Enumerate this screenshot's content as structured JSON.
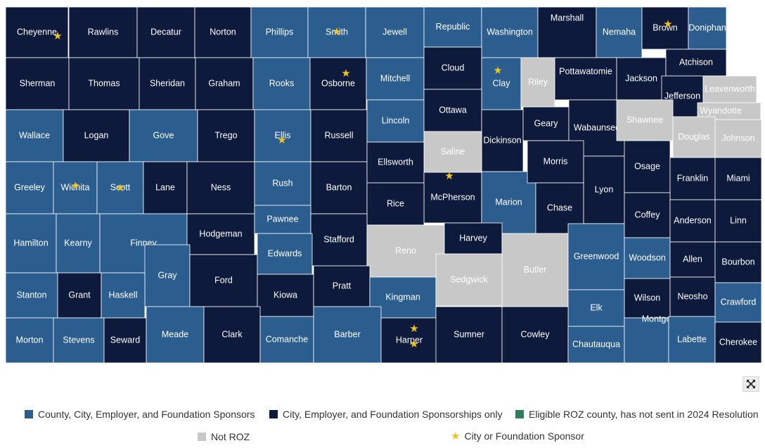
{
  "colors": {
    "full_sponsor": "#2b5d8f",
    "partial_sponsor": "#0e1a3c",
    "eligible": "#2e7d5b",
    "not_roz": "#c8c8c8",
    "star": "#f2c31b",
    "border": "#ffffff"
  },
  "legend": [
    {
      "key": "full_sponsor",
      "label": "County, City, Employer, and Foundation Sponsors"
    },
    {
      "key": "partial_sponsor",
      "label": "City, Employer, and Foundation Sponsorships only"
    },
    {
      "key": "eligible",
      "label": "Eligible ROZ county, has not sent in 2024 Resolution"
    },
    {
      "key": "not_roz",
      "label": "Not ROZ"
    },
    {
      "key": "star",
      "label": "City or Foundation Sponsor",
      "icon": "star-icon"
    }
  ],
  "expand_icon": "expand-icon",
  "counties": [
    {
      "name": "Cheyenne",
      "status": "partial_sponsor",
      "star": true
    },
    {
      "name": "Rawlins",
      "status": "partial_sponsor",
      "star": false
    },
    {
      "name": "Decatur",
      "status": "partial_sponsor",
      "star": false
    },
    {
      "name": "Norton",
      "status": "partial_sponsor",
      "star": false
    },
    {
      "name": "Phillips",
      "status": "full_sponsor",
      "star": false
    },
    {
      "name": "Smith",
      "status": "full_sponsor",
      "star": true
    },
    {
      "name": "Jewell",
      "status": "full_sponsor",
      "star": false
    },
    {
      "name": "Republic",
      "status": "full_sponsor",
      "star": false
    },
    {
      "name": "Washington",
      "status": "full_sponsor",
      "star": false
    },
    {
      "name": "Marshall",
      "status": "partial_sponsor",
      "star": false
    },
    {
      "name": "Nemaha",
      "status": "full_sponsor",
      "star": false
    },
    {
      "name": "Brown",
      "status": "partial_sponsor",
      "star": true
    },
    {
      "name": "Doniphan",
      "status": "full_sponsor",
      "star": false
    },
    {
      "name": "Sherman",
      "status": "partial_sponsor",
      "star": false
    },
    {
      "name": "Thomas",
      "status": "partial_sponsor",
      "star": false
    },
    {
      "name": "Sheridan",
      "status": "partial_sponsor",
      "star": false
    },
    {
      "name": "Graham",
      "status": "partial_sponsor",
      "star": false
    },
    {
      "name": "Rooks",
      "status": "full_sponsor",
      "star": false
    },
    {
      "name": "Osborne",
      "status": "partial_sponsor",
      "star": true
    },
    {
      "name": "Mitchell",
      "status": "full_sponsor",
      "star": false
    },
    {
      "name": "Cloud",
      "status": "partial_sponsor",
      "star": false
    },
    {
      "name": "Clay",
      "status": "full_sponsor",
      "star": true
    },
    {
      "name": "Riley",
      "status": "not_roz",
      "star": false
    },
    {
      "name": "Pottawatomie",
      "status": "partial_sponsor",
      "star": false
    },
    {
      "name": "Jackson",
      "status": "partial_sponsor",
      "star": false
    },
    {
      "name": "Atchison",
      "status": "partial_sponsor",
      "star": false
    },
    {
      "name": "Jefferson",
      "status": "partial_sponsor",
      "star": false
    },
    {
      "name": "Leavenworth",
      "status": "not_roz",
      "star": false
    },
    {
      "name": "Wyandotte",
      "status": "not_roz",
      "star": false
    },
    {
      "name": "Wallace",
      "status": "full_sponsor",
      "star": false
    },
    {
      "name": "Logan",
      "status": "partial_sponsor",
      "star": false
    },
    {
      "name": "Gove",
      "status": "full_sponsor",
      "star": false
    },
    {
      "name": "Trego",
      "status": "partial_sponsor",
      "star": false
    },
    {
      "name": "Ellis",
      "status": "full_sponsor",
      "star": true
    },
    {
      "name": "Russell",
      "status": "partial_sponsor",
      "star": false
    },
    {
      "name": "Lincoln",
      "status": "full_sponsor",
      "star": false
    },
    {
      "name": "Ottawa",
      "status": "partial_sponsor",
      "star": false
    },
    {
      "name": "Dickinson",
      "status": "partial_sponsor",
      "star": false
    },
    {
      "name": "Geary",
      "status": "partial_sponsor",
      "star": false
    },
    {
      "name": "Wabaunsee",
      "status": "partial_sponsor",
      "star": false
    },
    {
      "name": "Shawnee",
      "status": "not_roz",
      "star": false
    },
    {
      "name": "Douglas",
      "status": "not_roz",
      "star": false
    },
    {
      "name": "Johnson",
      "status": "not_roz",
      "star": false
    },
    {
      "name": "Saline",
      "status": "not_roz",
      "star": false
    },
    {
      "name": "Greeley",
      "status": "full_sponsor",
      "star": false
    },
    {
      "name": "Wichita",
      "status": "full_sponsor",
      "star": true
    },
    {
      "name": "Scott",
      "status": "full_sponsor",
      "star": true
    },
    {
      "name": "Lane",
      "status": "partial_sponsor",
      "star": false
    },
    {
      "name": "Ness",
      "status": "partial_sponsor",
      "star": false
    },
    {
      "name": "Rush",
      "status": "full_sponsor",
      "star": false
    },
    {
      "name": "Barton",
      "status": "partial_sponsor",
      "star": false
    },
    {
      "name": "Ellsworth",
      "status": "partial_sponsor",
      "star": false
    },
    {
      "name": "McPherson",
      "status": "partial_sponsor",
      "star": true
    },
    {
      "name": "Marion",
      "status": "full_sponsor",
      "star": false
    },
    {
      "name": "Morris",
      "status": "partial_sponsor",
      "star": false
    },
    {
      "name": "Chase",
      "status": "partial_sponsor",
      "star": false
    },
    {
      "name": "Lyon",
      "status": "partial_sponsor",
      "star": false
    },
    {
      "name": "Osage",
      "status": "partial_sponsor",
      "star": false
    },
    {
      "name": "Franklin",
      "status": "partial_sponsor",
      "star": false
    },
    {
      "name": "Miami",
      "status": "partial_sponsor",
      "star": false
    },
    {
      "name": "Rice",
      "status": "partial_sponsor",
      "star": false
    },
    {
      "name": "Hamilton",
      "status": "full_sponsor",
      "star": false
    },
    {
      "name": "Kearny",
      "status": "full_sponsor",
      "star": false
    },
    {
      "name": "Finney",
      "status": "full_sponsor",
      "star": false
    },
    {
      "name": "Hodgeman",
      "status": "partial_sponsor",
      "star": false
    },
    {
      "name": "Pawnee",
      "status": "full_sponsor",
      "star": false
    },
    {
      "name": "Stafford",
      "status": "partial_sponsor",
      "star": false
    },
    {
      "name": "Reno",
      "status": "not_roz",
      "star": false
    },
    {
      "name": "Harvey",
      "status": "partial_sponsor",
      "star": false
    },
    {
      "name": "Butler",
      "status": "not_roz",
      "star": false
    },
    {
      "name": "Greenwood",
      "status": "full_sponsor",
      "star": false
    },
    {
      "name": "Coffey",
      "status": "partial_sponsor",
      "star": false
    },
    {
      "name": "Anderson",
      "status": "partial_sponsor",
      "star": false
    },
    {
      "name": "Linn",
      "status": "partial_sponsor",
      "star": false
    },
    {
      "name": "Woodson",
      "status": "full_sponsor",
      "star": false
    },
    {
      "name": "Allen",
      "status": "partial_sponsor",
      "star": false
    },
    {
      "name": "Bourbon",
      "status": "partial_sponsor",
      "star": false
    },
    {
      "name": "Gray",
      "status": "full_sponsor",
      "star": false
    },
    {
      "name": "Ford",
      "status": "partial_sponsor",
      "star": false
    },
    {
      "name": "Edwards",
      "status": "full_sponsor",
      "star": false
    },
    {
      "name": "Kiowa",
      "status": "partial_sponsor",
      "star": false
    },
    {
      "name": "Pratt",
      "status": "partial_sponsor",
      "star": false
    },
    {
      "name": "Kingman",
      "status": "full_sponsor",
      "star": false
    },
    {
      "name": "Sedgwick",
      "status": "not_roz",
      "star": false
    },
    {
      "name": "Stanton",
      "status": "full_sponsor",
      "star": false
    },
    {
      "name": "Grant",
      "status": "partial_sponsor",
      "star": false
    },
    {
      "name": "Haskell",
      "status": "full_sponsor",
      "star": false
    },
    {
      "name": "Wilson",
      "status": "partial_sponsor",
      "star": false
    },
    {
      "name": "Neosho",
      "status": "partial_sponsor",
      "star": false
    },
    {
      "name": "Crawford",
      "status": "full_sponsor",
      "star": false
    },
    {
      "name": "Elk",
      "status": "full_sponsor",
      "star": false
    },
    {
      "name": "Morton",
      "status": "full_sponsor",
      "star": false
    },
    {
      "name": "Stevens",
      "status": "full_sponsor",
      "star": false
    },
    {
      "name": "Seward",
      "status": "partial_sponsor",
      "star": false
    },
    {
      "name": "Meade",
      "status": "full_sponsor",
      "star": false
    },
    {
      "name": "Clark",
      "status": "partial_sponsor",
      "star": false
    },
    {
      "name": "Comanche",
      "status": "full_sponsor",
      "star": false
    },
    {
      "name": "Barber",
      "status": "full_sponsor",
      "star": false
    },
    {
      "name": "Harper",
      "status": "partial_sponsor",
      "star": true
    },
    {
      "name": "Sumner",
      "status": "partial_sponsor",
      "star": false
    },
    {
      "name": "Cowley",
      "status": "partial_sponsor",
      "star": false
    },
    {
      "name": "Chautauqua",
      "status": "full_sponsor",
      "star": false
    },
    {
      "name": "Montgomery",
      "status": "full_sponsor",
      "star": false
    },
    {
      "name": "Labette",
      "status": "full_sponsor",
      "star": false
    },
    {
      "name": "Cherokee",
      "status": "partial_sponsor",
      "star": false
    }
  ]
}
